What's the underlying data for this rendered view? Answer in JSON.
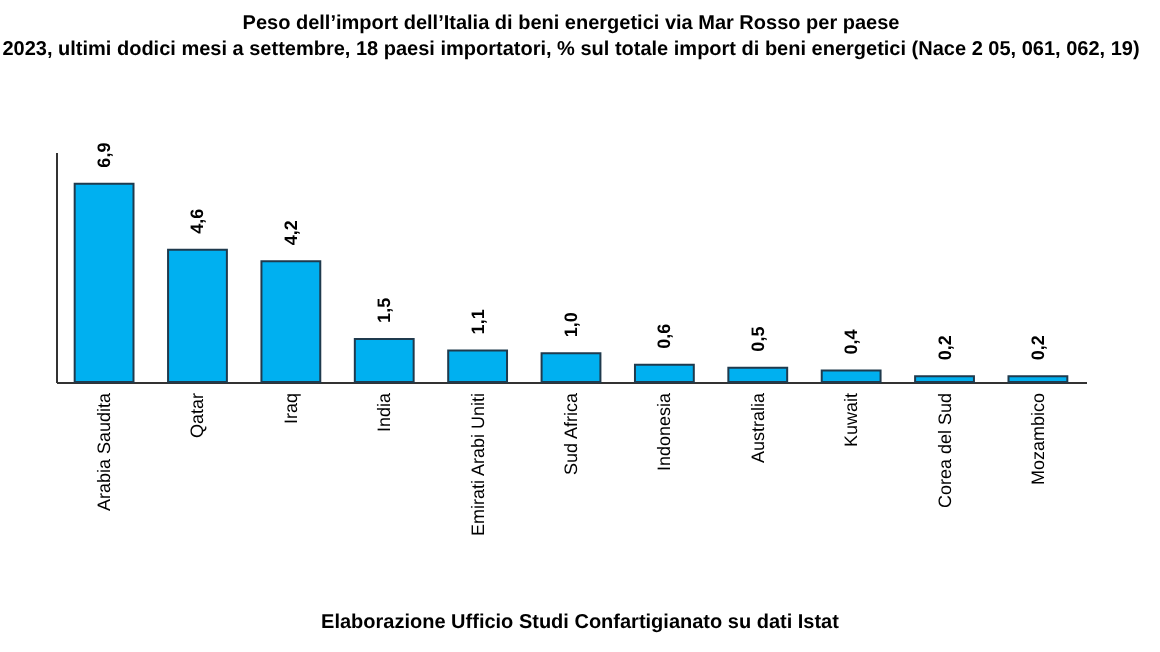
{
  "chart_data": {
    "type": "bar",
    "title": "Peso dell’import dell’Italia di beni energetici via Mar Rosso per paese",
    "subtitle": "2023, ultimi dodici mesi a settembre, 18 paesi importatori, % sul totale import di beni energetici (Nace 2 05, 061, 062, 19)",
    "categories": [
      "Arabia Saudita",
      "Qatar",
      "Iraq",
      "India",
      "Emirati Arabi Uniti",
      "Sud Africa",
      "Indonesia",
      "Australia",
      "Kuwait",
      "Corea del Sud",
      "Mozambico"
    ],
    "values": [
      6.9,
      4.6,
      4.2,
      1.5,
      1.1,
      1.0,
      0.6,
      0.5,
      0.4,
      0.2,
      0.2
    ],
    "value_labels": [
      "6,9",
      "4,6",
      "4,2",
      "1,5",
      "1,1",
      "1,0",
      "0,6",
      "0,5",
      "0,4",
      "0,2",
      "0,2"
    ],
    "color": "#00b0f0",
    "ylim": [
      0,
      8
    ],
    "tick_labels": "x",
    "annotations": [
      "Elaborazione Ufficio Studi Confartigianato su dati Istat"
    ]
  }
}
